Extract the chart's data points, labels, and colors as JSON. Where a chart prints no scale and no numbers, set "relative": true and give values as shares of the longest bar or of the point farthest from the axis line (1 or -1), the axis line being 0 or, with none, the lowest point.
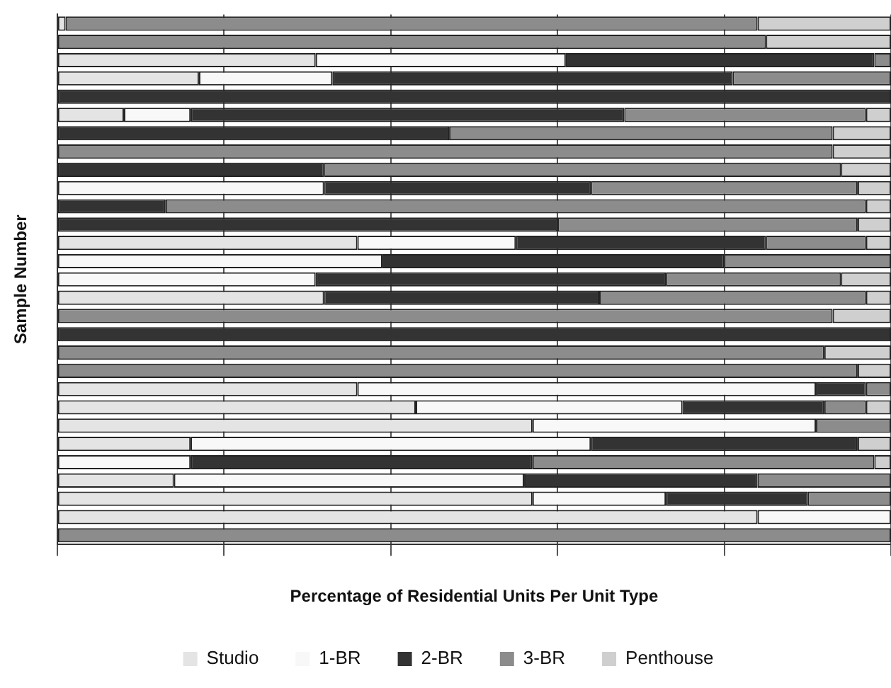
{
  "chart_data": {
    "type": "bar",
    "orientation": "horizontal",
    "stacked": true,
    "relative": true,
    "xlabel": "Percentage of Residential Units Per Unit Type",
    "ylabel": "Sample Number",
    "categories": [
      null,
      null,
      null,
      null,
      null,
      null,
      null,
      null,
      null,
      null,
      null,
      null,
      null,
      null,
      null,
      null,
      null,
      null,
      null,
      null,
      null,
      null,
      null,
      null,
      null,
      null,
      null,
      null,
      null
    ],
    "series": [
      {
        "name": "Studio",
        "color": "#e4e4e4",
        "values": [
          0.01,
          0,
          0.31,
          0.17,
          0,
          0.08,
          0,
          0,
          0,
          0,
          0,
          0,
          0.36,
          0,
          0,
          0.32,
          0,
          0,
          0,
          0,
          0.36,
          0.43,
          0.57,
          0.16,
          0,
          0.14,
          0.57,
          0.84,
          0
        ]
      },
      {
        "name": "1-BR",
        "color": "#f8f8f8",
        "values": [
          0,
          0,
          0.3,
          0.16,
          0,
          0.08,
          0,
          0,
          0,
          0.32,
          0,
          0,
          0.19,
          0.39,
          0.31,
          0,
          0,
          0,
          0,
          0,
          0.55,
          0.32,
          0.34,
          0.48,
          0.16,
          0.42,
          0.16,
          0.16,
          0
        ]
      },
      {
        "name": "2-BR",
        "color": "#333333",
        "values": [
          0,
          0,
          0.37,
          0.48,
          1,
          0.52,
          0.47,
          0,
          0.32,
          0.32,
          0.13,
          0.6,
          0.3,
          0.41,
          0.42,
          0.33,
          0,
          1,
          0,
          0,
          0.06,
          0.17,
          0,
          0.32,
          0.41,
          0.28,
          0.17,
          0,
          0
        ]
      },
      {
        "name": "3-BR",
        "color": "#8c8c8c",
        "values": [
          0.83,
          0.85,
          0.02,
          0.19,
          0,
          0.29,
          0.46,
          0.93,
          0.62,
          0.32,
          0.84,
          0.36,
          0.12,
          0.2,
          0.21,
          0.32,
          0.93,
          0,
          0.92,
          0.96,
          0.03,
          0.05,
          0.09,
          0,
          0.41,
          0.16,
          0.1,
          0,
          1
        ]
      },
      {
        "name": "Penthouse",
        "color": "#cfcfcf",
        "values": [
          0.16,
          0.15,
          0,
          0,
          0,
          0.03,
          0.07,
          0.07,
          0.06,
          0.04,
          0.03,
          0.04,
          0.03,
          0,
          0.06,
          0.03,
          0.07,
          0,
          0.08,
          0.04,
          0,
          0.03,
          0,
          0.04,
          0.02,
          0,
          0,
          0,
          0
        ]
      }
    ],
    "grid": "x",
    "legend": "bottom"
  }
}
